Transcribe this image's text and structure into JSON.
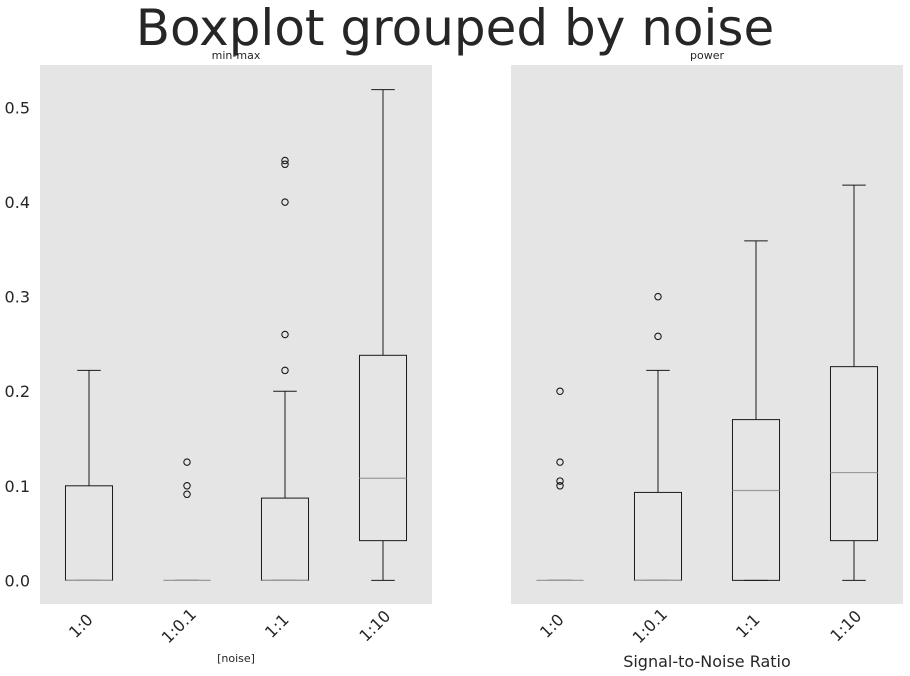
{
  "title": "Boxplot grouped by noise",
  "chart_data": [
    {
      "type": "box",
      "title": "min-max",
      "xlabel": "[noise]",
      "ylabel": "",
      "ylim": [
        -0.025,
        0.545
      ],
      "yticks": [
        "0.0",
        "0.1",
        "0.2",
        "0.3",
        "0.4",
        "0.5"
      ],
      "ytick_values": [
        0.0,
        0.1,
        0.2,
        0.3,
        0.4,
        0.5
      ],
      "categories": [
        "1:0",
        "1:0.1",
        "1:1",
        "1:10"
      ],
      "boxes": [
        {
          "whislo": 0.0,
          "q1": 0.0,
          "med": 0.0,
          "q3": 0.1,
          "whishi": 0.222,
          "fliers": []
        },
        {
          "whislo": 0.0,
          "q1": 0.0,
          "med": 0.0,
          "q3": 0.0,
          "whishi": 0.0,
          "fliers": [
            0.091,
            0.1,
            0.125
          ]
        },
        {
          "whislo": 0.0,
          "q1": 0.0,
          "med": 0.0,
          "q3": 0.087,
          "whishi": 0.2,
          "fliers": [
            0.222,
            0.26,
            0.4,
            0.44,
            0.444
          ]
        },
        {
          "whislo": 0.0,
          "q1": 0.042,
          "med": 0.108,
          "q3": 0.238,
          "whishi": 0.519,
          "fliers": []
        }
      ],
      "grid": false
    },
    {
      "type": "box",
      "title": "power",
      "xlabel": "Signal-to-Noise Ratio",
      "ylabel": "",
      "ylim": [
        -0.025,
        0.545
      ],
      "categories": [
        "1:0",
        "1:0.1",
        "1:1",
        "1:10"
      ],
      "boxes": [
        {
          "whislo": 0.0,
          "q1": 0.0,
          "med": 0.0,
          "q3": 0.0,
          "whishi": 0.0,
          "fliers": [
            0.1,
            0.105,
            0.125,
            0.2
          ]
        },
        {
          "whislo": 0.0,
          "q1": 0.0,
          "med": 0.0,
          "q3": 0.093,
          "whishi": 0.222,
          "fliers": [
            0.258,
            0.3
          ]
        },
        {
          "whislo": 0.0,
          "q1": 0.0,
          "med": 0.095,
          "q3": 0.17,
          "whishi": 0.359,
          "fliers": []
        },
        {
          "whislo": 0.0,
          "q1": 0.042,
          "med": 0.114,
          "q3": 0.226,
          "whishi": 0.418,
          "fliers": []
        }
      ],
      "grid": false
    }
  ],
  "colors": {
    "panel_bg": "#e5e5e5",
    "box_edge": "#1a1a1a",
    "median": "#9a9a9a",
    "text": "#262626"
  }
}
